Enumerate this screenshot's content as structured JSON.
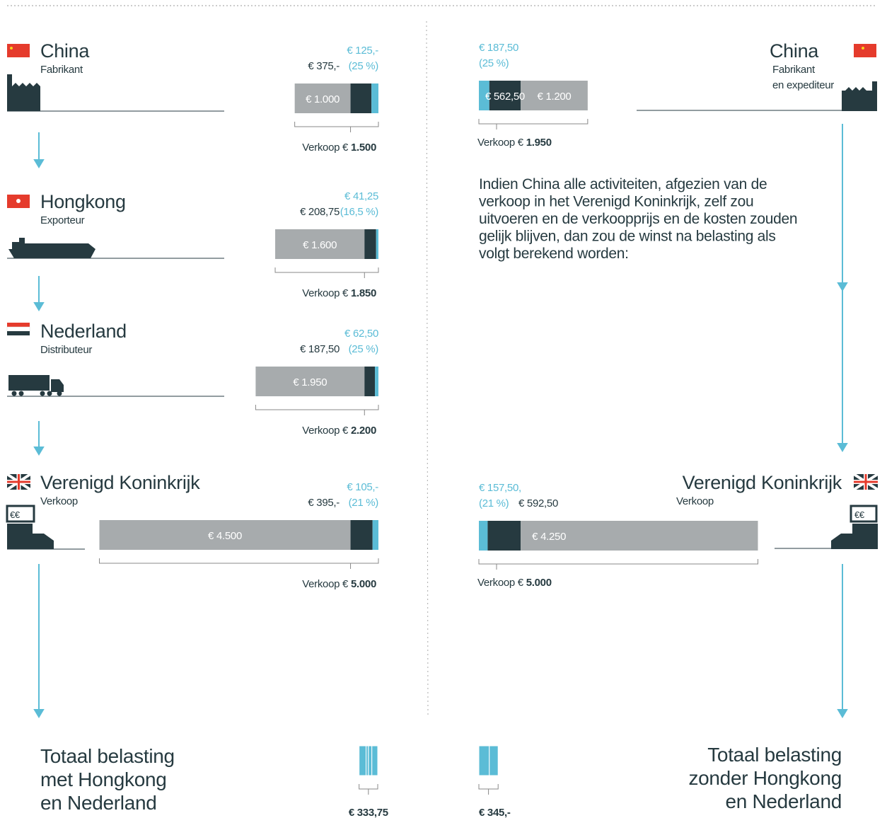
{
  "left": {
    "stages": [
      {
        "country": "China",
        "role": "Fabrikant",
        "values": [
          1000,
          375,
          125
        ],
        "value_labels": [
          "€ 1.000",
          "€ 375,-",
          "€ 125,-"
        ],
        "percent": "(25 %)",
        "sale_label": "Verkoop €",
        "sale": "1.500"
      },
      {
        "country": "Hongkong",
        "role": "Exporteur",
        "values": [
          1600,
          208.75,
          41.25
        ],
        "value_labels": [
          "€ 1.600",
          "€ 208,75",
          "€ 41,25"
        ],
        "percent": "(16,5 %)",
        "sale_label": "Verkoop €",
        "sale": "1.850"
      },
      {
        "country": "Nederland",
        "role": "Distributeur",
        "values": [
          1950,
          187.5,
          62.5
        ],
        "value_labels": [
          "€ 1.950",
          "€ 187,50",
          "€ 62,50"
        ],
        "percent": "(25 %)",
        "sale_label": "Verkoop €",
        "sale": "2.200"
      },
      {
        "country": "Verenigd Koninkrijk",
        "role": "Verkoop",
        "values": [
          4500,
          395,
          105
        ],
        "value_labels": [
          "€ 4.500",
          "€ 395,-",
          "€ 105,-"
        ],
        "percent": "(21 %)",
        "sale_label": "Verkoop €",
        "sale": "5.000"
      }
    ],
    "total_title": [
      "Totaal belasting",
      "met Hongkong",
      "en Nederland"
    ],
    "total": 333.75,
    "total_label": "€ 333,75"
  },
  "right": {
    "stages": [
      {
        "country": "China",
        "role": [
          "Fabrikant",
          "en expediteur"
        ],
        "values": [
          187.5,
          562.5,
          1200
        ],
        "value_labels": [
          "€ 187,50",
          "€ 562,50",
          "€ 1.200"
        ],
        "percent": "(25 %)",
        "sale_label": "Verkoop €",
        "sale": "1.950"
      },
      {
        "country": "Verenigd Koninkrijk",
        "role": [
          "Verkoop"
        ],
        "values": [
          157.5,
          592.5,
          4250
        ],
        "value_labels": [
          "€ 157,50,",
          "€ 592,50",
          "€ 4.250"
        ],
        "percent": "(21 %)",
        "sale_label": "Verkoop €",
        "sale": "5.000"
      }
    ],
    "note": [
      "Indien China alle activiteiten, afgezien van de",
      "verkoop in het Verenigd Koninkrijk, zelf zou",
      "uitvoeren en de verkoopprijs en de kosten zouden",
      "gelijk blijven, dan zou de winst na belasting als",
      "volgt berekend worden:"
    ],
    "total_title": [
      "Totaal belasting",
      "zonder Hongkong",
      "en Nederland"
    ],
    "total": 345,
    "total_label": "€ 345,-"
  }
}
